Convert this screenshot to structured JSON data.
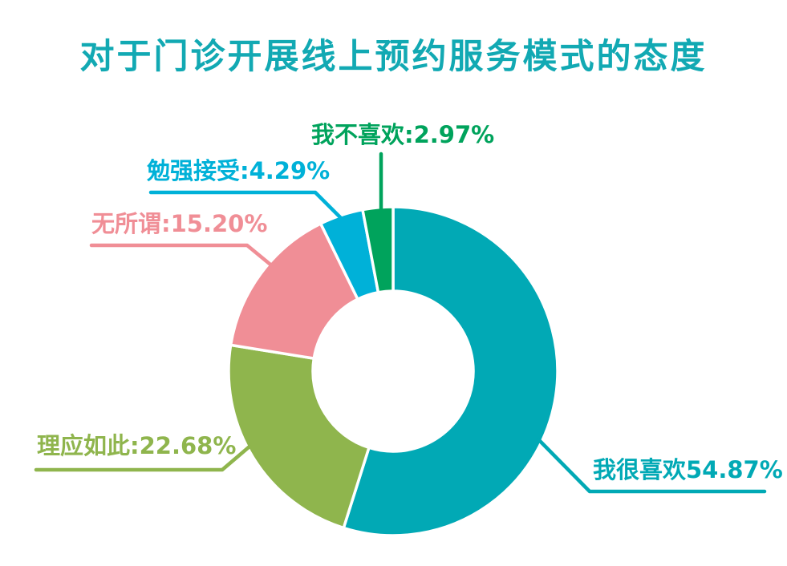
{
  "chart_data": {
    "type": "pie",
    "subtype": "donut",
    "title": "对于门诊开展线上预约服务模式的态度",
    "title_color": "#12A9B3",
    "background_color": "#FFFFFF",
    "start_angle_deg": 0,
    "direction": "clockwise",
    "hole_ratio": 0.49,
    "legend": "none",
    "unit": "%",
    "segments": [
      {
        "label": "我很喜欢",
        "value": 54.87,
        "color": "#01A9B5",
        "callout": "我很喜欢54.87%"
      },
      {
        "label": "理应如此",
        "value": 22.68,
        "color": "#8FB54D",
        "callout": "理应如此:22.68%"
      },
      {
        "label": "无所谓",
        "value": 15.2,
        "color": "#F08E96",
        "callout": "无所谓:15.20%"
      },
      {
        "label": "勉强接受",
        "value": 4.29,
        "color": "#00B1D8",
        "callout": "勉强接受:4.29%"
      },
      {
        "label": "我不喜欢",
        "value": 2.97,
        "color": "#00A35C",
        "callout": "我不喜欢:2.97%"
      }
    ]
  }
}
